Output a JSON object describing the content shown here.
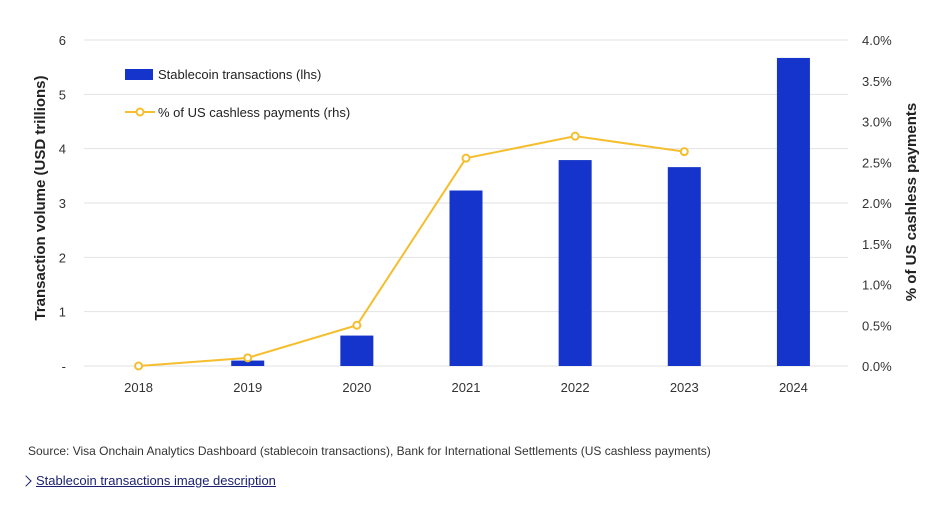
{
  "chart_data": {
    "type": "bar+line",
    "categories": [
      "2018",
      "2019",
      "2020",
      "2021",
      "2022",
      "2023",
      "2024"
    ],
    "series": [
      {
        "name": "Stablecoin transactions (lhs)",
        "type": "bar",
        "axis": "left",
        "color": "#1434cb",
        "values": [
          0,
          0.1,
          0.56,
          3.23,
          3.79,
          3.66,
          5.67
        ]
      },
      {
        "name": "% of US cashless payments (rhs)",
        "type": "line",
        "axis": "right",
        "color": "#f5be2e",
        "values": [
          0.0,
          0.1,
          0.5,
          2.55,
          2.82,
          2.63,
          null
        ]
      }
    ],
    "ylabel_left": "Transaction volume (USD trillions)",
    "ylabel_right": "% of US cashless payments",
    "ylim_left": [
      0,
      6
    ],
    "ylim_right": [
      0,
      4
    ],
    "left_ticks": [
      "-",
      "1",
      "2",
      "3",
      "4",
      "5",
      "6"
    ],
    "right_ticks": [
      "0.0%",
      "0.5%",
      "1.0%",
      "1.5%",
      "2.0%",
      "2.5%",
      "3.0%",
      "3.5%",
      "4.0%"
    ],
    "grid": true,
    "legend_position": "top-left"
  },
  "source_text": "Source: Visa Onchain Analytics Dashboard (stablecoin transactions), Bank for International Settlements (US cashless payments)",
  "link_text": " Stablecoin transactions image description"
}
